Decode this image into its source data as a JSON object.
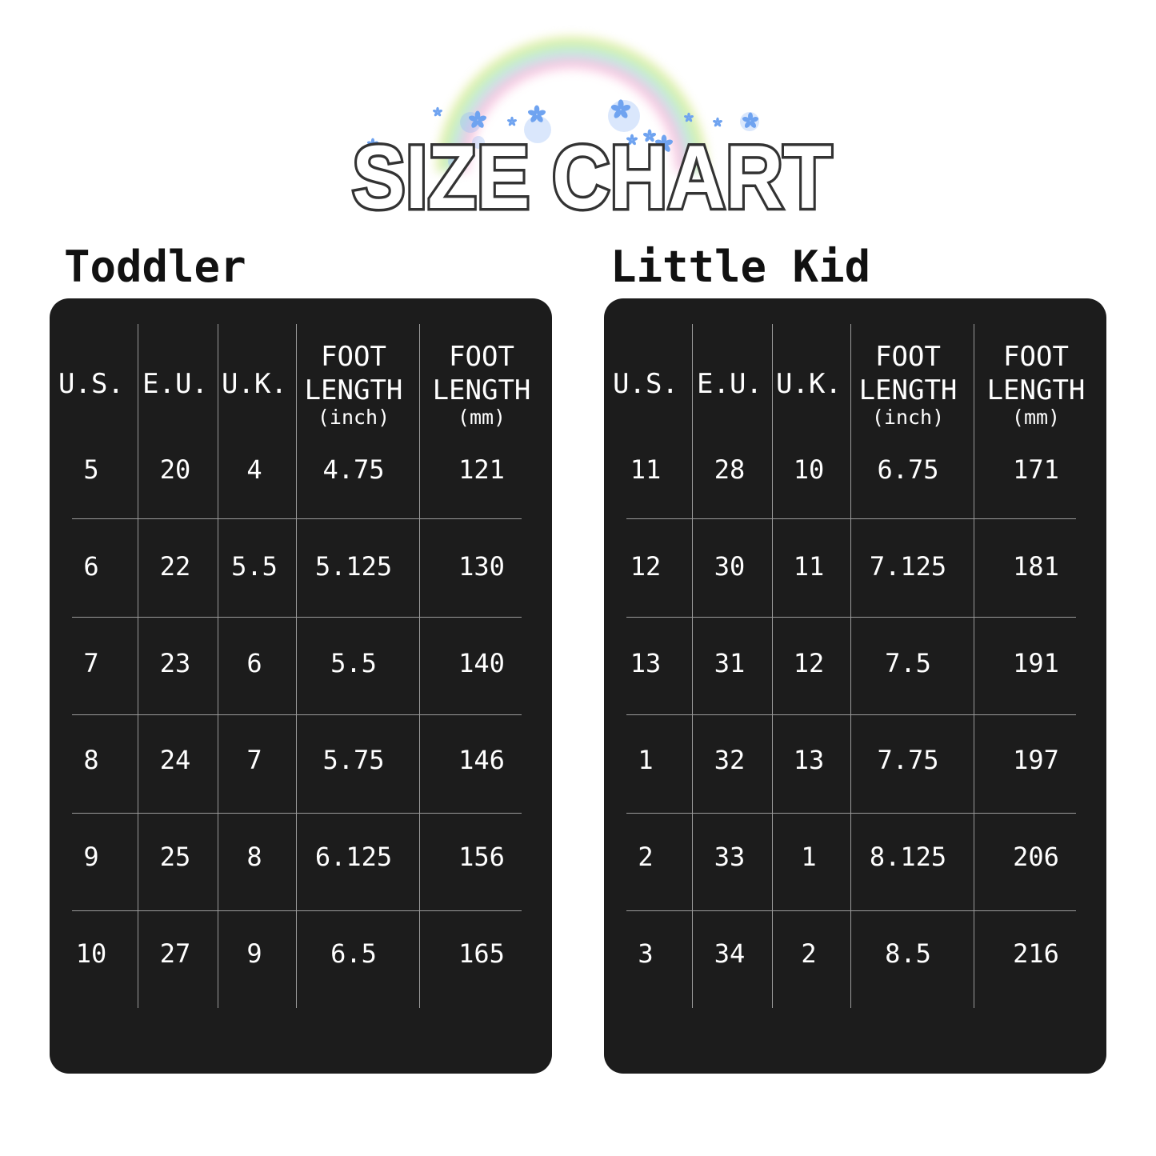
{
  "title": "SIZE CHART",
  "tables": [
    {
      "name": "Toddler",
      "headers": [
        {
          "label": "U.S.",
          "unit": ""
        },
        {
          "label": "E.U.",
          "unit": ""
        },
        {
          "label": "U.K.",
          "unit": ""
        },
        {
          "label": "FOOT LENGTH",
          "unit": "(inch)"
        },
        {
          "label": "FOOT LENGTH",
          "unit": "(mm)"
        }
      ],
      "rows": [
        [
          "5",
          "20",
          "4",
          "4.75",
          "121"
        ],
        [
          "6",
          "22",
          "5.5",
          "5.125",
          "130"
        ],
        [
          "7",
          "23",
          "6",
          "5.5",
          "140"
        ],
        [
          "8",
          "24",
          "7",
          "5.75",
          "146"
        ],
        [
          "9",
          "25",
          "8",
          "6.125",
          "156"
        ],
        [
          "10",
          "27",
          "9",
          "6.5",
          "165"
        ]
      ]
    },
    {
      "name": "Little Kid",
      "headers": [
        {
          "label": "U.S.",
          "unit": ""
        },
        {
          "label": "E.U.",
          "unit": ""
        },
        {
          "label": "U.K.",
          "unit": ""
        },
        {
          "label": "FOOT LENGTH",
          "unit": "(inch)"
        },
        {
          "label": "FOOT LENGTH",
          "unit": "(mm)"
        }
      ],
      "rows": [
        [
          "11",
          "28",
          "10",
          "6.75",
          "171"
        ],
        [
          "12",
          "30",
          "11",
          "7.125",
          "181"
        ],
        [
          "13",
          "31",
          "12",
          "7.5",
          "191"
        ],
        [
          "1",
          "32",
          "13",
          "7.75",
          "197"
        ],
        [
          "2",
          "33",
          "1",
          "8.125",
          "206"
        ],
        [
          "3",
          "34",
          "2",
          "8.5",
          "216"
        ]
      ]
    }
  ],
  "colors": {
    "panel": "#1c1c1c",
    "flower": "#6fa3f0"
  }
}
